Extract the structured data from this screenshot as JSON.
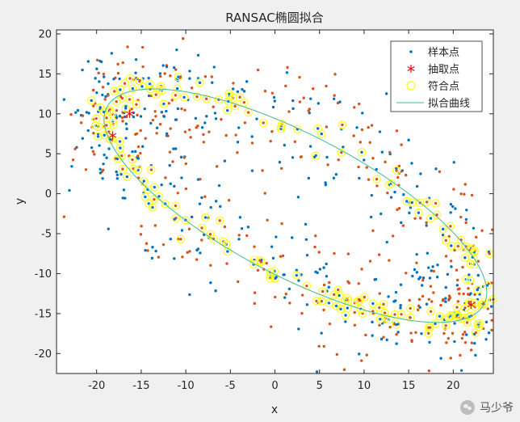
{
  "chart_data": {
    "type": "scatter",
    "title": "RANSAC椭圆拟合",
    "xlabel": "x",
    "ylabel": "y",
    "xlim": [
      -24.5,
      24.5
    ],
    "ylim": [
      -22.5,
      20.5
    ],
    "xticks": [
      -20,
      -15,
      -10,
      -5,
      0,
      5,
      10,
      15,
      20
    ],
    "yticks": [
      -20,
      -15,
      -10,
      -5,
      0,
      5,
      10,
      15,
      20
    ],
    "grid": false,
    "legend_position": "top-right",
    "legend": [
      {
        "label": "样本点",
        "key": "samples"
      },
      {
        "label": "抽取点",
        "key": "picked"
      },
      {
        "label": "符合点",
        "key": "inliers"
      },
      {
        "label": "拟合曲线",
        "key": "fit"
      }
    ],
    "colors": {
      "samples_blue": "#0072BD",
      "samples_orange": "#D95319",
      "picked": "#e8141c",
      "inliers": "#ffff2a",
      "fit": "#3fb99a"
    },
    "ellipse_fit": {
      "center": [
        2.3,
        -1.5
      ],
      "semi_major": 24.5,
      "semi_minor": 8.6,
      "angle_deg": -31
    },
    "picked_points": [
      {
        "x": -16.3,
        "y": 10.0
      },
      {
        "x": -18.2,
        "y": 7.3
      },
      {
        "x": 22.0,
        "y": -13.9
      }
    ],
    "sample_points": {
      "count_blue": 450,
      "count_orange": 450,
      "x_range": [
        -24.5,
        24.5
      ],
      "y_range": [
        -22.5,
        20.5
      ],
      "inlier_count": 300
    }
  },
  "watermark": {
    "text": "马少爷"
  }
}
